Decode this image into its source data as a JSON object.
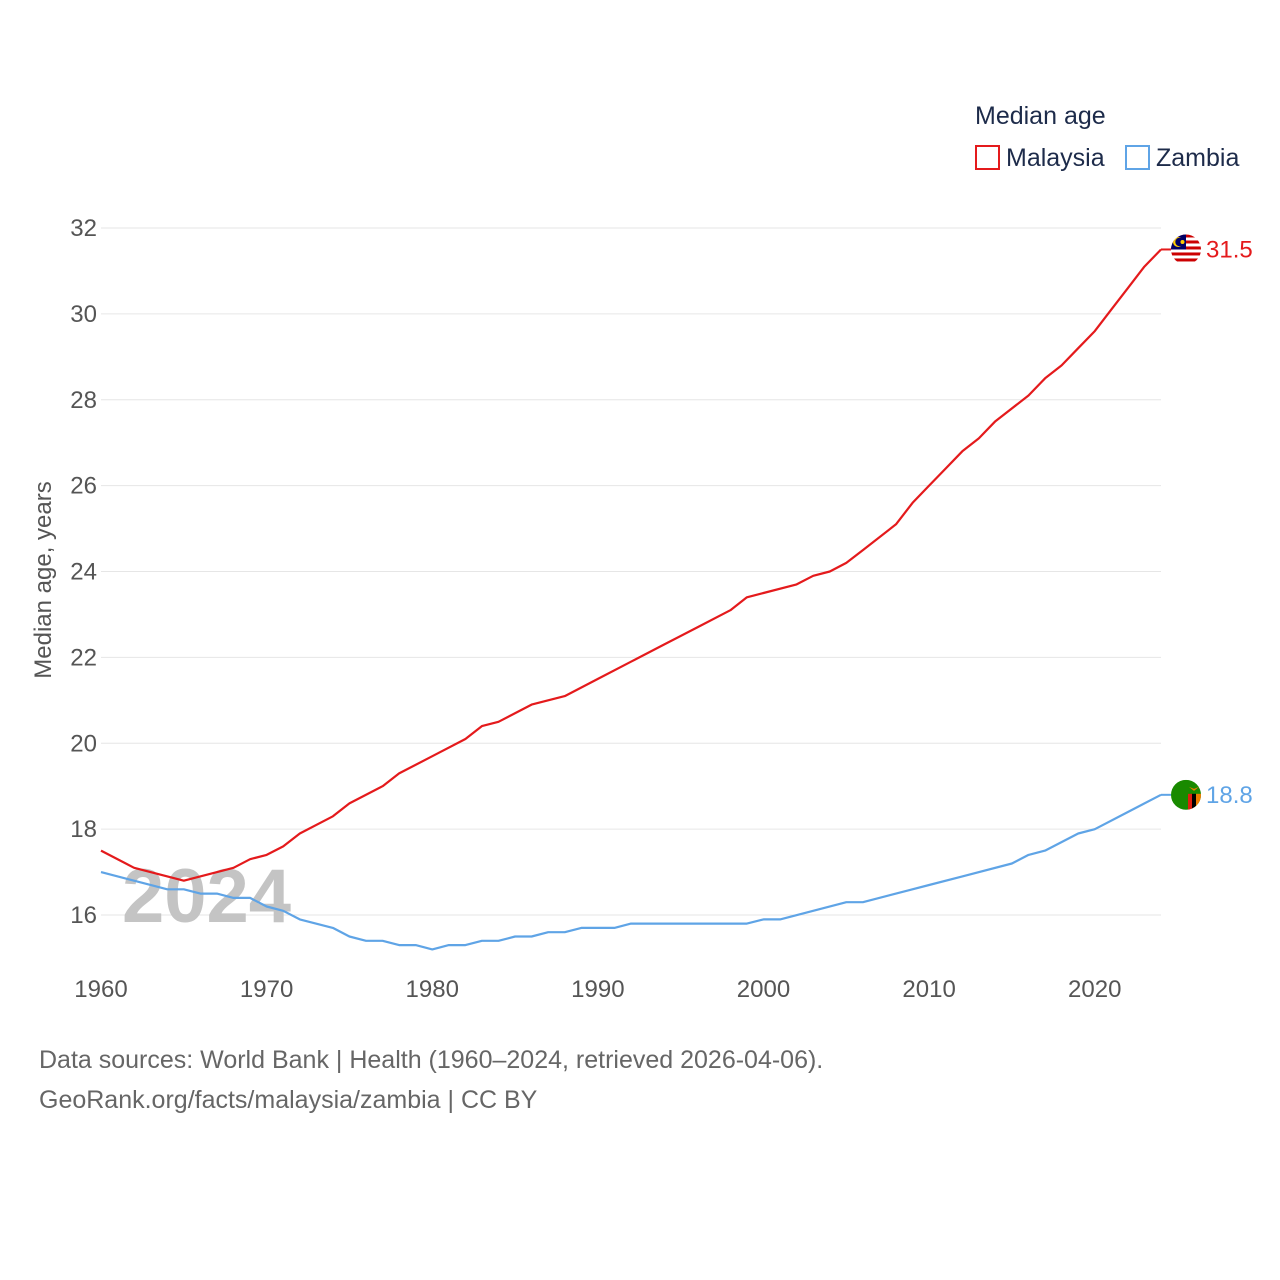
{
  "chart_data": {
    "type": "line",
    "title": "Median age",
    "xlabel": "",
    "ylabel": "Median age, years",
    "xlim": [
      1960,
      2024
    ],
    "ylim": [
      15,
      32
    ],
    "yticks": [
      16,
      18,
      20,
      22,
      24,
      26,
      28,
      30,
      32
    ],
    "xticks": [
      1960,
      1970,
      1980,
      1990,
      2000,
      2010,
      2020
    ],
    "year_label": "2024",
    "legend": {
      "title": "Median age",
      "position": "top-right"
    },
    "series": [
      {
        "name": "Malaysia",
        "color": "#e41a1c",
        "end_value": "31.5",
        "flag_icon": "malaysia-flag-icon",
        "x": [
          1960,
          1962,
          1965,
          1968,
          1969,
          1970,
          1971,
          1972,
          1974,
          1975,
          1977,
          1978,
          1980,
          1982,
          1983,
          1984,
          1986,
          1988,
          1990,
          1992,
          1994,
          1996,
          1998,
          1999,
          2000,
          2002,
          2003,
          2004,
          2005,
          2006,
          2008,
          2009,
          2010,
          2011,
          2012,
          2013,
          2014,
          2016,
          2017,
          2018,
          2019,
          2020,
          2021,
          2022,
          2023,
          2024
        ],
        "values": [
          17.5,
          17.1,
          16.8,
          17.1,
          17.3,
          17.4,
          17.6,
          17.9,
          18.3,
          18.6,
          19.0,
          19.3,
          19.7,
          20.1,
          20.4,
          20.5,
          20.9,
          21.1,
          21.5,
          21.9,
          22.3,
          22.7,
          23.1,
          23.4,
          23.5,
          23.7,
          23.9,
          24.0,
          24.2,
          24.5,
          25.1,
          25.6,
          26.0,
          26.4,
          26.8,
          27.1,
          27.5,
          28.1,
          28.5,
          28.8,
          29.2,
          29.6,
          30.1,
          30.6,
          31.1,
          31.5
        ]
      },
      {
        "name": "Zambia",
        "color": "#5fa4e6",
        "end_value": "18.8",
        "flag_icon": "zambia-flag-icon",
        "x": [
          1960,
          1962,
          1964,
          1965,
          1966,
          1967,
          1968,
          1969,
          1970,
          1971,
          1972,
          1974,
          1975,
          1976,
          1977,
          1978,
          1979,
          1980,
          1981,
          1982,
          1983,
          1984,
          1985,
          1986,
          1987,
          1988,
          1989,
          1991,
          1992,
          1999,
          2000,
          2001,
          2003,
          2005,
          2006,
          2008,
          2010,
          2012,
          2015,
          2016,
          2017,
          2019,
          2020,
          2022,
          2024
        ],
        "values": [
          17.0,
          16.8,
          16.6,
          16.6,
          16.5,
          16.5,
          16.4,
          16.4,
          16.2,
          16.1,
          15.9,
          15.7,
          15.5,
          15.4,
          15.4,
          15.3,
          15.3,
          15.2,
          15.3,
          15.3,
          15.4,
          15.4,
          15.5,
          15.5,
          15.6,
          15.6,
          15.7,
          15.7,
          15.8,
          15.8,
          15.9,
          15.9,
          16.1,
          16.3,
          16.3,
          16.5,
          16.7,
          16.9,
          17.2,
          17.4,
          17.5,
          17.9,
          18.0,
          18.4,
          18.8
        ]
      }
    ]
  },
  "footer": {
    "sources": "Data sources: World Bank | Health (1960–2024, retrieved 2026-04-06).",
    "credit": "GeoRank.org/facts/malaysia/zambia | CC BY"
  }
}
